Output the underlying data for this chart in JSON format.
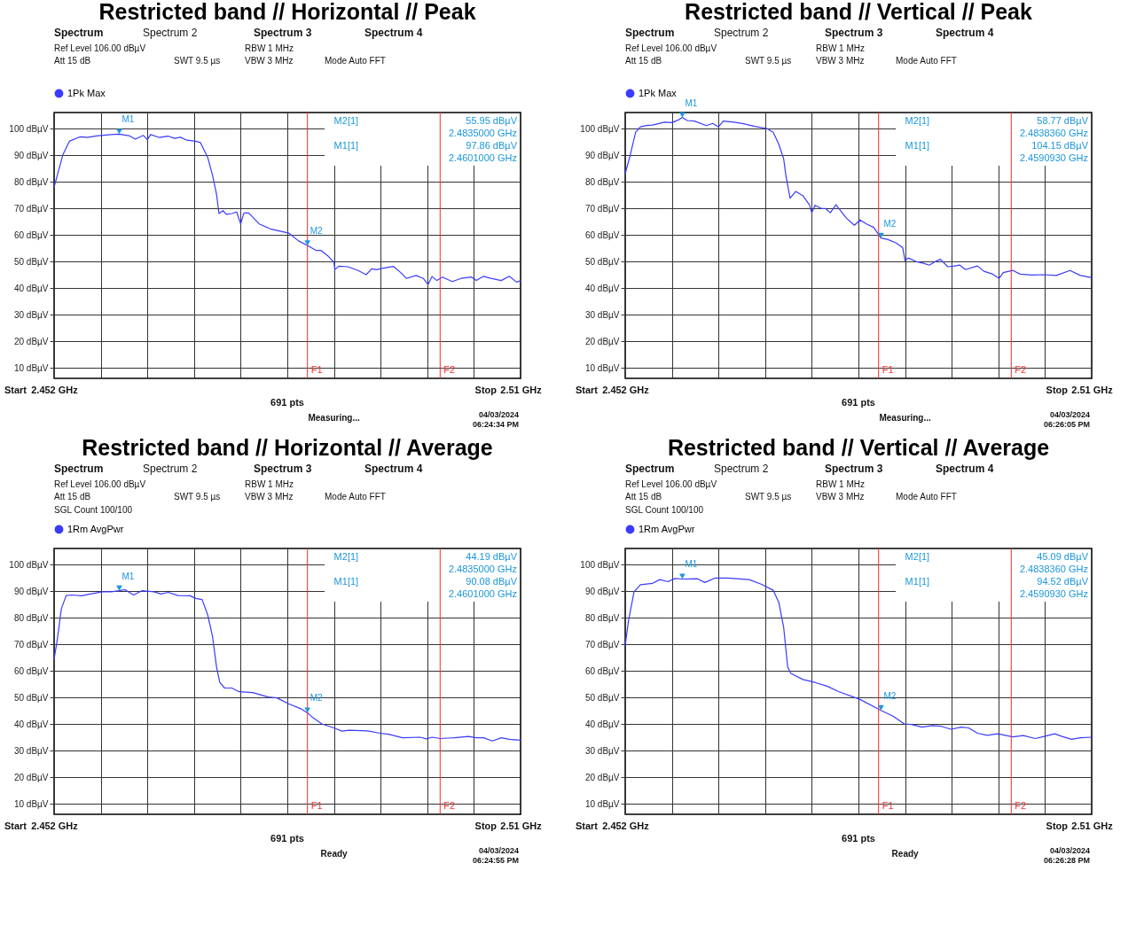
{
  "chart_data": [
    {
      "type": "line",
      "title": "Restricted band // Horizontal // Peak",
      "x": [
        2.452,
        2.4524,
        2.4531,
        2.4539,
        2.455,
        2.4554,
        2.4561,
        2.4573,
        2.4591,
        2.4601,
        2.4614,
        2.4621,
        2.4631,
        2.4636,
        2.464,
        2.4651,
        2.4662,
        2.467,
        2.4677,
        2.4685,
        2.4696,
        2.4702,
        2.4711,
        2.4717,
        2.4722,
        2.4725,
        2.473,
        2.4734,
        2.4741,
        2.4747,
        2.4752,
        2.4756,
        2.4762,
        2.4775,
        2.479,
        2.4812,
        2.4824,
        2.4835,
        2.4846,
        2.4852,
        2.4861,
        2.4868,
        2.4869,
        2.4874,
        2.4885,
        2.4898,
        2.4908,
        2.4915,
        2.4921,
        2.4928,
        2.4942,
        2.4951,
        2.4958,
        2.497,
        2.4979,
        2.4985,
        2.499,
        2.4996,
        2.5003,
        2.5015,
        2.5026,
        2.5039,
        2.5045,
        2.5054,
        2.5063,
        2.5076,
        2.5086,
        2.5095,
        2.51
      ],
      "series": [
        {
          "name": "1Pk Max",
          "color": "#3b3bff",
          "values": [
            78,
            82.4,
            90.2,
            95.2,
            96.6,
            96.9,
            96.6,
            97.2,
            97.7,
            97.9,
            97.2,
            96,
            97.4,
            95.8,
            97.7,
            96.6,
            97.1,
            96.3,
            96.7,
            95.6,
            95.2,
            94.7,
            89.1,
            82.4,
            75.2,
            68,
            69.1,
            67.7,
            68,
            68.6,
            64.1,
            68.2,
            68.2,
            64.1,
            62.1,
            60.6,
            57.7,
            56,
            54.1,
            54.1,
            51.9,
            49.7,
            46.9,
            48.2,
            48,
            46.6,
            45,
            47.2,
            46.9,
            47.4,
            48.1,
            45.8,
            43.6,
            44.7,
            43.6,
            41.3,
            44.3,
            42.8,
            44.1,
            42.4,
            43.6,
            44.1,
            42.8,
            44.4,
            43.6,
            42.8,
            44.4,
            42.2,
            42.7
          ]
        }
      ],
      "xlim": [
        2.452,
        2.51
      ],
      "xticks": [
        {
          "value": 2.452,
          "label": "2.452 GHz"
        },
        {
          "value": 2.4578,
          "label": null
        },
        {
          "value": 2.4636,
          "label": null
        },
        {
          "value": 2.4694,
          "label": null
        },
        {
          "value": 2.4752,
          "label": null
        },
        {
          "value": 2.481,
          "label": null
        },
        {
          "value": 2.4868,
          "label": null
        },
        {
          "value": 2.4926,
          "label": null
        },
        {
          "value": 2.4984,
          "label": null
        },
        {
          "value": 2.5042,
          "label": null
        },
        {
          "value": 2.51,
          "label": "2.51 GHz"
        }
      ],
      "ylim": [
        6,
        106
      ],
      "yticks": [
        {
          "value": 10,
          "label": "10 dBµV"
        },
        {
          "value": 20,
          "label": "20 dBµV"
        },
        {
          "value": 30,
          "label": "30 dBµV"
        },
        {
          "value": 40,
          "label": "40 dBµV"
        },
        {
          "value": 50,
          "label": "50 dBµV"
        },
        {
          "value": 60,
          "label": "60 dBµV"
        },
        {
          "value": 70,
          "label": "70 dBµV"
        },
        {
          "value": 80,
          "label": "80 dBµV"
        },
        {
          "value": 90,
          "label": "90 dBµV"
        },
        {
          "value": 100,
          "label": "100 dBµV"
        }
      ],
      "grid": true,
      "legend": "top left",
      "marker": "none",
      "line_style": "solid",
      "ref_lines": [
        {
          "axis": "x",
          "value": 2.4835,
          "label": "F1",
          "color": "#ff2a2a"
        },
        {
          "axis": "x",
          "value": 2.5,
          "label": "F2",
          "color": "#ff2a2a"
        }
      ],
      "annotations": [
        "Spectrum",
        "Spectrum 2",
        "Spectrum 3",
        "Spectrum 4",
        "Ref Level 106.00 dBµV",
        "RBW 1 MHz",
        "Att 15 dB",
        "SWT 9.5 µs",
        "VBW 3 MHz",
        "Mode Auto FFT",
        "M2[1]",
        "55.95 dBµV",
        "2.4835000 GHz",
        "M1[1]",
        "97.86 dBµV",
        "2.4601000 GHz",
        "Start",
        "691 pts",
        "Stop",
        "Measuring...",
        "04/03/2024",
        "06:24:34 PM",
        {
          "text": "M1",
          "x": 2.4601,
          "y": 97.86
        },
        {
          "text": "M2",
          "x": 2.4835,
          "y": 55.95
        }
      ]
    },
    {
      "type": "line",
      "title": "Restricted band // Vertical // Peak",
      "x": [
        2.452,
        2.4526,
        2.4533,
        2.4539,
        2.4546,
        2.4554,
        2.4569,
        2.4578,
        2.4586,
        2.4591,
        2.4597,
        2.4606,
        2.4621,
        2.4629,
        2.4636,
        2.4642,
        2.4655,
        2.4666,
        2.4681,
        2.4696,
        2.4704,
        2.4711,
        2.4717,
        2.472,
        2.4725,
        2.4732,
        2.4741,
        2.4749,
        2.4752,
        2.4756,
        2.4764,
        2.4769,
        2.4775,
        2.4782,
        2.4795,
        2.4805,
        2.4812,
        2.482,
        2.4829,
        2.4838,
        2.4846,
        2.4857,
        2.4865,
        2.4868,
        2.4872,
        2.4882,
        2.4891,
        2.4898,
        2.4904,
        2.4912,
        2.4921,
        2.4928,
        2.4936,
        2.4943,
        2.4958,
        2.4966,
        2.4977,
        2.4985,
        2.499,
        2.5002,
        2.5011,
        2.5026,
        2.5041,
        2.5056,
        2.5073,
        2.5086,
        2.51
      ],
      "series": [
        {
          "name": "1Pk Max",
          "color": "#3b3bff",
          "values": [
            83,
            89.7,
            98.6,
            100.6,
            101.1,
            101.3,
            102.4,
            102.2,
            103.2,
            104.2,
            103,
            102.8,
            101.1,
            101.9,
            100.6,
            102.8,
            102.4,
            101.9,
            100.8,
            100,
            98.6,
            94.1,
            88.6,
            81.9,
            73.8,
            76.3,
            74.7,
            71.3,
            68.3,
            71.1,
            69.9,
            69.9,
            68.3,
            71.3,
            66.3,
            63.6,
            65.6,
            64.1,
            62.8,
            58.8,
            58.3,
            56.9,
            55.2,
            50.2,
            51.3,
            49.9,
            49.3,
            48.6,
            49.7,
            50.8,
            48,
            48.2,
            48.6,
            46.9,
            48.3,
            46.3,
            45.2,
            43.6,
            45.8,
            46.6,
            45.2,
            44.9,
            45,
            44.7,
            46.6,
            44.7,
            43.9
          ]
        }
      ],
      "xlim": [
        2.452,
        2.51
      ],
      "xticks": [
        {
          "value": 2.452,
          "label": "2.452 GHz"
        },
        {
          "value": 2.4578,
          "label": null
        },
        {
          "value": 2.4636,
          "label": null
        },
        {
          "value": 2.4694,
          "label": null
        },
        {
          "value": 2.4752,
          "label": null
        },
        {
          "value": 2.481,
          "label": null
        },
        {
          "value": 2.4868,
          "label": null
        },
        {
          "value": 2.4926,
          "label": null
        },
        {
          "value": 2.4984,
          "label": null
        },
        {
          "value": 2.5042,
          "label": null
        },
        {
          "value": 2.51,
          "label": "2.51 GHz"
        }
      ],
      "ylim": [
        6,
        106
      ],
      "yticks": [
        {
          "value": 10,
          "label": "10 dBµV"
        },
        {
          "value": 20,
          "label": "20 dBµV"
        },
        {
          "value": 30,
          "label": "30 dBµV"
        },
        {
          "value": 40,
          "label": "40 dBµV"
        },
        {
          "value": 50,
          "label": "50 dBµV"
        },
        {
          "value": 60,
          "label": "60 dBµV"
        },
        {
          "value": 70,
          "label": "70 dBµV"
        },
        {
          "value": 80,
          "label": "80 dBµV"
        },
        {
          "value": 90,
          "label": "90 dBµV"
        },
        {
          "value": 100,
          "label": "100 dBµV"
        }
      ],
      "grid": true,
      "legend": "top left",
      "marker": "none",
      "line_style": "solid",
      "ref_lines": [
        {
          "axis": "x",
          "value": 2.4835,
          "label": "F1",
          "color": "#ff2a2a"
        },
        {
          "axis": "x",
          "value": 2.5,
          "label": "F2",
          "color": "#ff2a2a"
        }
      ],
      "annotations": [
        "Spectrum",
        "Spectrum 2",
        "Spectrum 3",
        "Spectrum 4",
        "Ref Level 106.00 dBµV",
        "RBW 1 MHz",
        "Att 15 dB",
        "SWT 9.5 µs",
        "VBW 3 MHz",
        "Mode Auto FFT",
        "M2[1]",
        "58.77 dBµV",
        "2.4838360 GHz",
        "M1[1]",
        "104.15 dBµV",
        "2.4590930 GHz",
        "Start",
        "691 pts",
        "Stop",
        "Measuring...",
        "04/03/2024",
        "06:26:05 PM",
        {
          "text": "M1",
          "x": 2.4591,
          "y": 104.15
        },
        {
          "text": "M2",
          "x": 2.4838,
          "y": 58.77
        }
      ]
    },
    {
      "type": "line",
      "title": "Restricted band // Horizontal // Average",
      "x": [
        2.452,
        2.4524,
        2.4529,
        2.4535,
        2.4542,
        2.4554,
        2.4565,
        2.458,
        2.4591,
        2.4601,
        2.4608,
        2.4619,
        2.4629,
        2.4644,
        2.4653,
        2.4662,
        2.4674,
        2.4689,
        2.4696,
        2.4704,
        2.4711,
        2.4717,
        2.4722,
        2.4726,
        2.4732,
        2.4741,
        2.475,
        2.4767,
        2.4786,
        2.4797,
        2.4812,
        2.4827,
        2.4835,
        2.4842,
        2.4853,
        2.4868,
        2.4878,
        2.4887,
        2.491,
        2.4925,
        2.4936,
        2.4953,
        2.4975,
        2.4983,
        2.499,
        2.5,
        2.5018,
        2.5035,
        2.5045,
        2.5054,
        2.5065,
        2.5076,
        2.5086,
        2.51
      ],
      "series": [
        {
          "name": "1Rm AvgPwr",
          "color": "#3b3bff",
          "values": [
            64.3,
            71.8,
            83.3,
            88.3,
            88.5,
            88.2,
            88.9,
            89.7,
            89.7,
            90.1,
            90.5,
            88.5,
            90.1,
            89.7,
            88.9,
            89.5,
            88.3,
            88.2,
            87.2,
            86.8,
            81,
            72.9,
            61.4,
            55.6,
            53.5,
            53.5,
            52.1,
            51.8,
            50.1,
            49.8,
            47.5,
            45.7,
            44.2,
            42.3,
            40,
            38.5,
            37.3,
            37.6,
            37.4,
            36.5,
            36.1,
            34.8,
            35,
            34.4,
            35,
            34.5,
            34.8,
            35.3,
            34.8,
            34.8,
            33.6,
            34.8,
            34.2,
            33.9
          ]
        }
      ],
      "xlim": [
        2.452,
        2.51
      ],
      "xticks": [
        {
          "value": 2.452,
          "label": "2.452 GHz"
        },
        {
          "value": 2.4578,
          "label": null
        },
        {
          "value": 2.4636,
          "label": null
        },
        {
          "value": 2.4694,
          "label": null
        },
        {
          "value": 2.4752,
          "label": null
        },
        {
          "value": 2.481,
          "label": null
        },
        {
          "value": 2.4868,
          "label": null
        },
        {
          "value": 2.4926,
          "label": null
        },
        {
          "value": 2.4984,
          "label": null
        },
        {
          "value": 2.5042,
          "label": null
        },
        {
          "value": 2.51,
          "label": "2.51 GHz"
        }
      ],
      "ylim": [
        6,
        106
      ],
      "yticks": [
        {
          "value": 10,
          "label": "10 dBµV"
        },
        {
          "value": 20,
          "label": "20 dBµV"
        },
        {
          "value": 30,
          "label": "30 dBµV"
        },
        {
          "value": 40,
          "label": "40 dBµV"
        },
        {
          "value": 50,
          "label": "50 dBµV"
        },
        {
          "value": 60,
          "label": "60 dBµV"
        },
        {
          "value": 70,
          "label": "70 dBµV"
        },
        {
          "value": 80,
          "label": "80 dBµV"
        },
        {
          "value": 90,
          "label": "90 dBµV"
        },
        {
          "value": 100,
          "label": "100 dBµV"
        }
      ],
      "grid": true,
      "legend": "top left",
      "marker": "none",
      "line_style": "solid",
      "ref_lines": [
        {
          "axis": "x",
          "value": 2.4835,
          "label": "F1",
          "color": "#ff2a2a"
        },
        {
          "axis": "x",
          "value": 2.5,
          "label": "F2",
          "color": "#ff2a2a"
        }
      ],
      "annotations": [
        "Spectrum",
        "Spectrum 2",
        "Spectrum 3",
        "Spectrum 4",
        "Ref Level 106.00 dBµV",
        "RBW 1 MHz",
        "Att 15 dB",
        "SWT 9.5 µs",
        "VBW 3 MHz",
        "Mode Auto FFT",
        "M2[1]",
        "44.19 dBµV",
        "2.4835000 GHz",
        "M1[1]",
        "90.08 dBµV",
        "2.4601000 GHz",
        "Start",
        "691 pts",
        "Stop",
        "Ready",
        "04/03/2024",
        "06:24:55 PM",
        "SGL Count 100/100",
        {
          "text": "M1",
          "x": 2.4601,
          "y": 90.08
        },
        {
          "text": "M2",
          "x": 2.4835,
          "y": 44.19
        }
      ]
    },
    {
      "type": "line",
      "title": "Restricted band // Vertical // Average",
      "x": [
        2.452,
        2.4524,
        2.4531,
        2.4539,
        2.4554,
        2.4563,
        2.4573,
        2.4582,
        2.4591,
        2.461,
        2.4619,
        2.4632,
        2.4647,
        2.4674,
        2.4689,
        2.4704,
        2.4711,
        2.4717,
        2.4722,
        2.4726,
        2.4741,
        2.4756,
        2.4771,
        2.4786,
        2.4812,
        2.4838,
        2.4853,
        2.4867,
        2.4876,
        2.4889,
        2.4902,
        2.4913,
        2.4925,
        2.4938,
        2.4947,
        2.4958,
        2.497,
        2.4983,
        2.5002,
        2.5015,
        2.503,
        2.5041,
        2.5054,
        2.5063,
        2.5075,
        2.5086,
        2.51
      ],
      "series": [
        {
          "name": "1Rm AvgPwr",
          "color": "#3b3bff",
          "values": [
            69.5,
            78.7,
            89.7,
            92.4,
            92.9,
            94.3,
            93.5,
            94.7,
            94.5,
            94.6,
            93.2,
            94.9,
            94.9,
            94.3,
            92.6,
            90.3,
            85.7,
            76.4,
            61.4,
            59,
            56.7,
            55.6,
            54.2,
            52.1,
            49.2,
            45.1,
            42.9,
            40,
            39.8,
            38.8,
            39.4,
            39.1,
            38,
            38.8,
            38.5,
            36.5,
            35.7,
            36.3,
            35.1,
            35.6,
            34.5,
            35.3,
            36.3,
            35.3,
            34.2,
            34.8,
            35
          ]
        }
      ],
      "xlim": [
        2.452,
        2.51
      ],
      "xticks": [
        {
          "value": 2.452,
          "label": "2.452 GHz"
        },
        {
          "value": 2.4578,
          "label": null
        },
        {
          "value": 2.4636,
          "label": null
        },
        {
          "value": 2.4694,
          "label": null
        },
        {
          "value": 2.4752,
          "label": null
        },
        {
          "value": 2.481,
          "label": null
        },
        {
          "value": 2.4868,
          "label": null
        },
        {
          "value": 2.4926,
          "label": null
        },
        {
          "value": 2.4984,
          "label": null
        },
        {
          "value": 2.5042,
          "label": null
        },
        {
          "value": 2.51,
          "label": "2.51 GHz"
        }
      ],
      "ylim": [
        6,
        106
      ],
      "yticks": [
        {
          "value": 10,
          "label": "10 dBµV"
        },
        {
          "value": 20,
          "label": "20 dBµV"
        },
        {
          "value": 30,
          "label": "30 dBµV"
        },
        {
          "value": 40,
          "label": "40 dBµV"
        },
        {
          "value": 50,
          "label": "50 dBµV"
        },
        {
          "value": 60,
          "label": "60 dBµV"
        },
        {
          "value": 70,
          "label": "70 dBµV"
        },
        {
          "value": 80,
          "label": "80 dBµV"
        },
        {
          "value": 90,
          "label": "90 dBµV"
        },
        {
          "value": 100,
          "label": "100 dBµV"
        }
      ],
      "grid": true,
      "legend": "top left",
      "marker": "none",
      "line_style": "solid",
      "ref_lines": [
        {
          "axis": "x",
          "value": 2.4835,
          "label": "F1",
          "color": "#ff2a2a"
        },
        {
          "axis": "x",
          "value": 2.5,
          "label": "F2",
          "color": "#ff2a2a"
        }
      ],
      "annotations": [
        "Spectrum",
        "Spectrum 2",
        "Spectrum 3",
        "Spectrum 4",
        "Ref Level 106.00 dBµV",
        "RBW 1 MHz",
        "Att 15 dB",
        "SWT 9.5 µs",
        "VBW 3 MHz",
        "Mode Auto FFT",
        "M2[1]",
        "45.09 dBµV",
        "2.4838360 GHz",
        "M1[1]",
        "94.52 dBµV",
        "2.4590930 GHz",
        "Start",
        "691 pts",
        "Stop",
        "Ready",
        "04/03/2024",
        "06:26:28 PM",
        "SGL Count 100/100",
        {
          "text": "M1",
          "x": 2.4591,
          "y": 94.52
        },
        {
          "text": "M2",
          "x": 2.4838,
          "y": 45.09
        }
      ]
    }
  ]
}
